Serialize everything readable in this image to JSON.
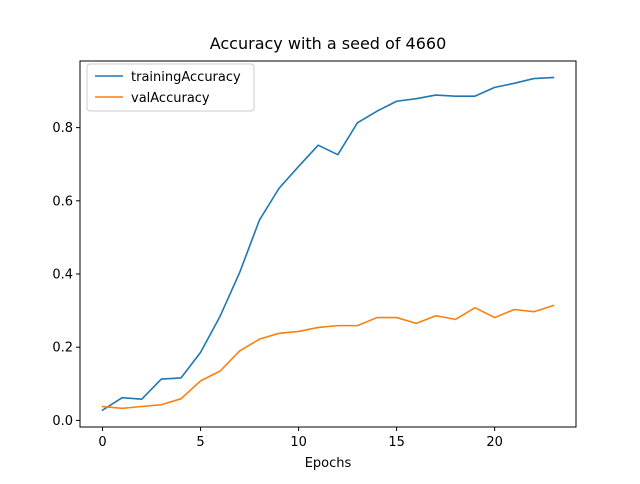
{
  "chart_data": {
    "type": "line",
    "title": "Accuracy with a seed of 4660",
    "xlabel": "Epochs",
    "ylabel": "",
    "xlim": [
      -1.15,
      24.15
    ],
    "ylim": [
      -0.018,
      0.982
    ],
    "xticks": [
      0,
      5,
      10,
      15,
      20
    ],
    "yticks": [
      0.0,
      0.2,
      0.4,
      0.6,
      0.8
    ],
    "xtick_labels": [
      "0",
      "5",
      "10",
      "15",
      "20"
    ],
    "ytick_labels": [
      "0.0",
      "0.2",
      "0.4",
      "0.6",
      "0.8"
    ],
    "grid": false,
    "legend_position": "top-left",
    "x": [
      0,
      1,
      2,
      3,
      4,
      5,
      6,
      7,
      8,
      9,
      10,
      11,
      12,
      13,
      14,
      15,
      16,
      17,
      18,
      19,
      20,
      21,
      22,
      23
    ],
    "series": [
      {
        "name": "trainingAccuracy",
        "color": "#1f77b4",
        "values": [
          0.028,
          0.062,
          0.058,
          0.113,
          0.116,
          0.186,
          0.285,
          0.405,
          0.547,
          0.634,
          0.694,
          0.752,
          0.726,
          0.813,
          0.845,
          0.872,
          0.879,
          0.889,
          0.886,
          0.886,
          0.91,
          0.921,
          0.934,
          0.937
        ]
      },
      {
        "name": "valAccuracy",
        "color": "#ff7f0e",
        "values": [
          0.038,
          0.033,
          0.038,
          0.043,
          0.059,
          0.108,
          0.135,
          0.19,
          0.222,
          0.238,
          0.243,
          0.254,
          0.259,
          0.259,
          0.281,
          0.281,
          0.265,
          0.286,
          0.276,
          0.308,
          0.281,
          0.303,
          0.297,
          0.314
        ]
      }
    ]
  }
}
